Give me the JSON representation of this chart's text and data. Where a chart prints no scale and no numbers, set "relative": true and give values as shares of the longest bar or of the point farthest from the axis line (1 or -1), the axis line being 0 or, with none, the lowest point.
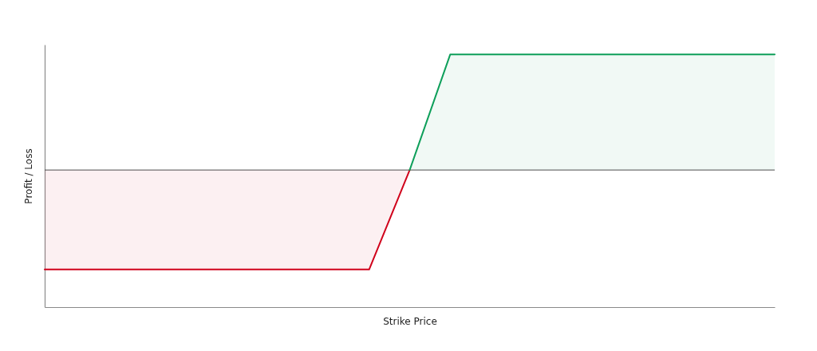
{
  "chart_data": {
    "type": "area",
    "xlabel": "Strike Price",
    "ylabel": "Profit / Loss",
    "relative": true,
    "categories": [
      null,
      null,
      null,
      null,
      null,
      null,
      null,
      null,
      null,
      null,
      null,
      null,
      null,
      null,
      null,
      null,
      null,
      null,
      null
    ],
    "series": [
      {
        "color": "#d0021b",
        "values": [
          -0.86,
          -0.86,
          -0.86,
          -0.86,
          -0.86,
          -0.86,
          -0.86,
          -0.86,
          -0.86,
          0,
          null,
          null,
          null,
          null,
          null,
          null,
          null,
          null,
          null
        ]
      },
      {
        "color": "#0e9f5a",
        "values": [
          null,
          null,
          null,
          null,
          null,
          null,
          null,
          null,
          null,
          0,
          1,
          1,
          1,
          1,
          1,
          1,
          1,
          1,
          1
        ]
      }
    ],
    "ref_lines": [
      {
        "axis": "y",
        "value": 0,
        "color": "#4d4d4d"
      }
    ],
    "tick_labels": false
  }
}
